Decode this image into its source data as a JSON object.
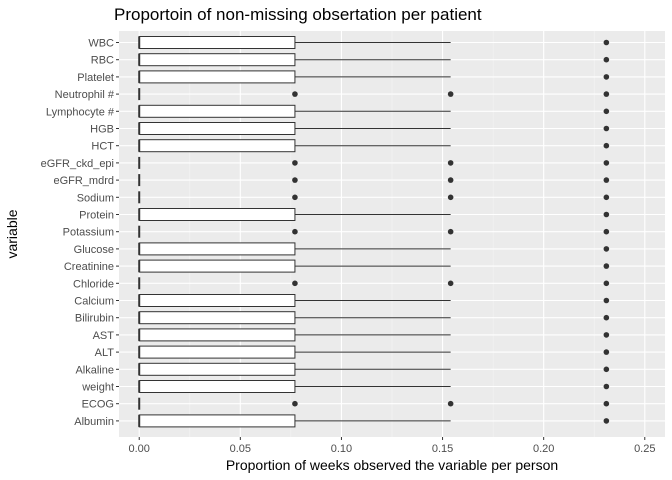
{
  "chart_data": {
    "type": "boxplot",
    "orientation": "horizontal",
    "title": "Proportoin of non-missing obsertation per patient",
    "xlabel": "Proportion of weeks observed the variable per person",
    "ylabel": "variable",
    "xlim": [
      -0.01,
      0.26
    ],
    "xticks": [
      0.0,
      0.05,
      0.1,
      0.15,
      0.2,
      0.25
    ],
    "xtick_labels": [
      "0.00",
      "0.05",
      "0.10",
      "0.15",
      "0.20",
      "0.25"
    ],
    "grid": true,
    "colors": {
      "panel": "#ebebeb",
      "grid_major": "#ffffff",
      "box_fill": "#ffffff",
      "box_line": "#333333",
      "point": "#333333"
    },
    "categories": [
      "WBC",
      "RBC",
      "Platelet",
      "Neutrophil #",
      "Lymphocyte #",
      "HGB",
      "HCT",
      "eGFR_ckd_epi",
      "eGFR_mdrd",
      "Sodium",
      "Protein",
      "Potassium",
      "Glucose",
      "Creatinine",
      "Chloride",
      "Calcium",
      "Bilirubin",
      "AST",
      "ALT",
      "Alkaline",
      "weight",
      "ECOG",
      "Albumin"
    ],
    "series": [
      {
        "variable": "WBC",
        "box": [
          0.0,
          0.0,
          0.0,
          0.077
        ],
        "whisker": [
          0.0,
          0.154
        ],
        "outliers": [
          0.231
        ]
      },
      {
        "variable": "RBC",
        "box": [
          0.0,
          0.0,
          0.0,
          0.077
        ],
        "whisker": [
          0.0,
          0.154
        ],
        "outliers": [
          0.231
        ]
      },
      {
        "variable": "Platelet",
        "box": [
          0.0,
          0.0,
          0.0,
          0.077
        ],
        "whisker": [
          0.0,
          0.154
        ],
        "outliers": [
          0.231
        ]
      },
      {
        "variable": "Neutrophil #",
        "box": [
          0.0,
          0.0,
          0.0,
          0.0
        ],
        "whisker": [
          0.0,
          0.0
        ],
        "outliers": [
          0.077,
          0.154,
          0.231
        ]
      },
      {
        "variable": "Lymphocyte #",
        "box": [
          0.0,
          0.0,
          0.0,
          0.077
        ],
        "whisker": [
          0.0,
          0.154
        ],
        "outliers": [
          0.231
        ]
      },
      {
        "variable": "HGB",
        "box": [
          0.0,
          0.0,
          0.0,
          0.077
        ],
        "whisker": [
          0.0,
          0.154
        ],
        "outliers": [
          0.231
        ]
      },
      {
        "variable": "HCT",
        "box": [
          0.0,
          0.0,
          0.0,
          0.077
        ],
        "whisker": [
          0.0,
          0.154
        ],
        "outliers": [
          0.231
        ]
      },
      {
        "variable": "eGFR_ckd_epi",
        "box": [
          0.0,
          0.0,
          0.0,
          0.0
        ],
        "whisker": [
          0.0,
          0.0
        ],
        "outliers": [
          0.077,
          0.154,
          0.231
        ]
      },
      {
        "variable": "eGFR_mdrd",
        "box": [
          0.0,
          0.0,
          0.0,
          0.0
        ],
        "whisker": [
          0.0,
          0.0
        ],
        "outliers": [
          0.077,
          0.154,
          0.231
        ]
      },
      {
        "variable": "Sodium",
        "box": [
          0.0,
          0.0,
          0.0,
          0.0
        ],
        "whisker": [
          0.0,
          0.0
        ],
        "outliers": [
          0.077,
          0.154,
          0.231
        ]
      },
      {
        "variable": "Protein",
        "box": [
          0.0,
          0.0,
          0.0,
          0.077
        ],
        "whisker": [
          0.0,
          0.154
        ],
        "outliers": [
          0.231
        ]
      },
      {
        "variable": "Potassium",
        "box": [
          0.0,
          0.0,
          0.0,
          0.0
        ],
        "whisker": [
          0.0,
          0.0
        ],
        "outliers": [
          0.077,
          0.154,
          0.231
        ]
      },
      {
        "variable": "Glucose",
        "box": [
          0.0,
          0.0,
          0.0,
          0.077
        ],
        "whisker": [
          0.0,
          0.154
        ],
        "outliers": [
          0.231
        ]
      },
      {
        "variable": "Creatinine",
        "box": [
          0.0,
          0.0,
          0.0,
          0.077
        ],
        "whisker": [
          0.0,
          0.154
        ],
        "outliers": [
          0.231
        ]
      },
      {
        "variable": "Chloride",
        "box": [
          0.0,
          0.0,
          0.0,
          0.0
        ],
        "whisker": [
          0.0,
          0.0
        ],
        "outliers": [
          0.077,
          0.154,
          0.231
        ]
      },
      {
        "variable": "Calcium",
        "box": [
          0.0,
          0.0,
          0.0,
          0.077
        ],
        "whisker": [
          0.0,
          0.154
        ],
        "outliers": [
          0.231
        ]
      },
      {
        "variable": "Bilirubin",
        "box": [
          0.0,
          0.0,
          0.0,
          0.077
        ],
        "whisker": [
          0.0,
          0.154
        ],
        "outliers": [
          0.231
        ]
      },
      {
        "variable": "AST",
        "box": [
          0.0,
          0.0,
          0.0,
          0.077
        ],
        "whisker": [
          0.0,
          0.154
        ],
        "outliers": [
          0.231
        ]
      },
      {
        "variable": "ALT",
        "box": [
          0.0,
          0.0,
          0.0,
          0.077
        ],
        "whisker": [
          0.0,
          0.154
        ],
        "outliers": [
          0.231
        ]
      },
      {
        "variable": "Alkaline",
        "box": [
          0.0,
          0.0,
          0.0,
          0.077
        ],
        "whisker": [
          0.0,
          0.154
        ],
        "outliers": [
          0.231
        ]
      },
      {
        "variable": "weight",
        "box": [
          0.0,
          0.0,
          0.0,
          0.077
        ],
        "whisker": [
          0.0,
          0.154
        ],
        "outliers": [
          0.231
        ]
      },
      {
        "variable": "ECOG",
        "box": [
          0.0,
          0.0,
          0.0,
          0.0
        ],
        "whisker": [
          0.0,
          0.0
        ],
        "outliers": [
          0.077,
          0.154,
          0.231
        ]
      },
      {
        "variable": "Albumin",
        "box": [
          0.0,
          0.0,
          0.0,
          0.077
        ],
        "whisker": [
          0.0,
          0.154
        ],
        "outliers": [
          0.231
        ]
      }
    ]
  }
}
